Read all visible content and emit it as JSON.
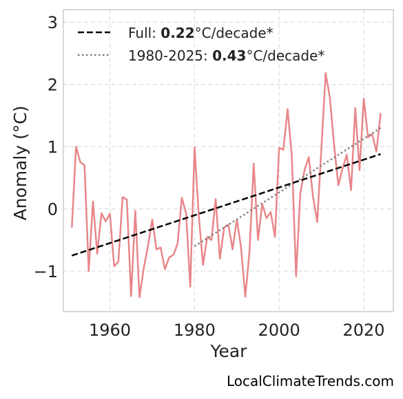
{
  "chart_data": {
    "type": "line",
    "xlabel": "Year",
    "ylabel": "Anomaly (°C)",
    "xlim": [
      1949,
      2027
    ],
    "ylim": [
      -1.65,
      3.2
    ],
    "xticks": [
      1960,
      1980,
      2000,
      2020
    ],
    "xtick_labels": [
      "1960",
      "1980",
      "2000",
      "2020"
    ],
    "yticks": [
      -1,
      0,
      1,
      2,
      3
    ],
    "ytick_labels": [
      "−1",
      "0",
      "1",
      "2",
      "3"
    ],
    "grid": true,
    "legend_position": "top-left",
    "series": [
      {
        "color": "#e8868a",
        "x": [
          1951,
          1952,
          1953,
          1954,
          1955,
          1956,
          1957,
          1958,
          1959,
          1960,
          1961,
          1962,
          1963,
          1964,
          1965,
          1966,
          1967,
          1968,
          1969,
          1970,
          1971,
          1972,
          1973,
          1974,
          1975,
          1976,
          1977,
          1978,
          1979,
          1980,
          1981,
          1982,
          1983,
          1984,
          1985,
          1986,
          1987,
          1988,
          1989,
          1990,
          1991,
          1992,
          1993,
          1994,
          1995,
          1996,
          1997,
          1998,
          1999,
          2000,
          2001,
          2002,
          2003,
          2004,
          2005,
          2006,
          2007,
          2008,
          2009,
          2010,
          2011,
          2012,
          2013,
          2014,
          2015,
          2016,
          2017,
          2018,
          2019,
          2020,
          2021,
          2022,
          2023,
          2024
        ],
        "y": [
          -0.3,
          1.0,
          0.75,
          0.7,
          -1.0,
          0.12,
          -0.72,
          -0.07,
          -0.2,
          -0.08,
          -0.92,
          -0.85,
          0.19,
          0.15,
          -1.4,
          -0.03,
          -1.42,
          -0.95,
          -0.6,
          -0.17,
          -0.65,
          -0.62,
          -0.97,
          -0.78,
          -0.74,
          -0.56,
          0.18,
          -0.07,
          -1.25,
          0.99,
          -0.1,
          -0.9,
          -0.45,
          -0.5,
          0.16,
          -0.8,
          -0.3,
          -0.25,
          -0.65,
          -0.17,
          -0.62,
          -1.41,
          -0.68,
          0.73,
          -0.5,
          0.08,
          -0.15,
          -0.05,
          -0.45,
          0.98,
          0.95,
          1.6,
          0.85,
          -1.08,
          0.25,
          0.62,
          0.83,
          0.2,
          -0.21,
          0.98,
          2.18,
          1.78,
          1.02,
          0.38,
          0.65,
          0.87,
          0.3,
          1.62,
          0.62,
          1.77,
          1.15,
          1.2,
          0.92,
          1.54
        ]
      },
      {
        "name": "Full",
        "color": "#000000",
        "style": "dashed",
        "x": [
          1951,
          2024
        ],
        "y": [
          -0.75,
          0.88
        ]
      },
      {
        "name": "1980-2025",
        "color": "#7f7f7f",
        "style": "dotted",
        "x": [
          1980,
          2024
        ],
        "y": [
          -0.6,
          1.3
        ]
      }
    ],
    "legend": [
      {
        "prefix": "Full: ",
        "value": "0.22",
        "suffix": "°C/decade*"
      },
      {
        "prefix": "1980-2025: ",
        "value": "0.43",
        "suffix": "°C/decade*"
      }
    ],
    "credit": "LocalClimateTrends.com"
  }
}
